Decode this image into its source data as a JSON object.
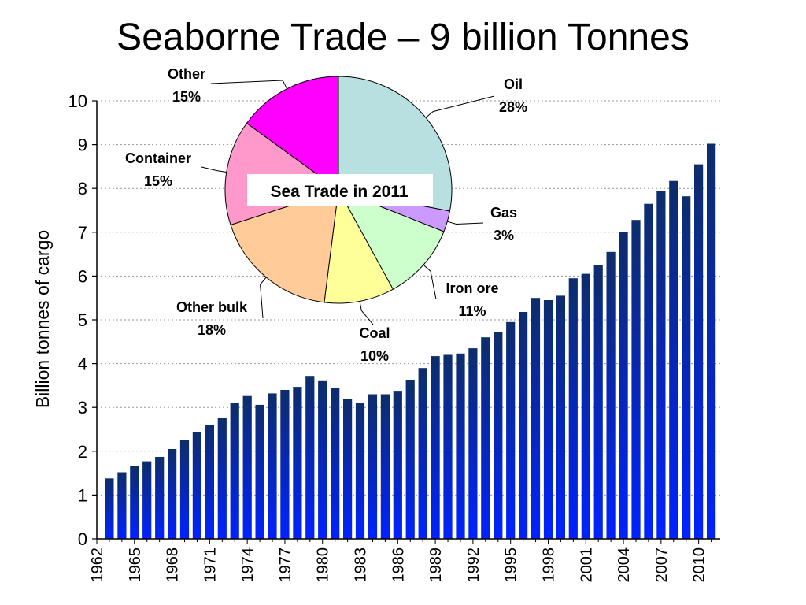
{
  "page": {
    "title": "Seaborne Trade – 9 billion Tonnes"
  },
  "chart_data": [
    {
      "type": "bar",
      "ylabel": "Billion tonnes of cargo",
      "ylim": [
        0,
        10
      ],
      "yticks": [
        "0",
        "1",
        "2",
        "3",
        "4",
        "5",
        "6",
        "7",
        "8",
        "9",
        "10"
      ],
      "grid": true,
      "xtick_labels": [
        "1962",
        "1965",
        "1968",
        "1971",
        "1974",
        "1977",
        "1980",
        "1983",
        "1986",
        "1989",
        "1992",
        "1995",
        "1998",
        "2001",
        "2004",
        "2007",
        "2010"
      ],
      "categories": [
        "1963",
        "1964",
        "1965",
        "1966",
        "1967",
        "1968",
        "1969",
        "1970",
        "1971",
        "1972",
        "1973",
        "1974",
        "1975",
        "1976",
        "1977",
        "1978",
        "1979",
        "1980",
        "1981",
        "1982",
        "1983",
        "1984",
        "1985",
        "1986",
        "1987",
        "1988",
        "1989",
        "1990",
        "1991",
        "1992",
        "1993",
        "1994",
        "1995",
        "1996",
        "1997",
        "1998",
        "1999",
        "2000",
        "2001",
        "2002",
        "2003",
        "2004",
        "2005",
        "2006",
        "2007",
        "2008",
        "2009",
        "2010",
        "2011"
      ],
      "values": [
        1.38,
        1.52,
        1.66,
        1.77,
        1.87,
        2.05,
        2.25,
        2.43,
        2.6,
        2.76,
        3.1,
        3.26,
        3.06,
        3.32,
        3.4,
        3.47,
        3.72,
        3.6,
        3.45,
        3.2,
        3.1,
        3.3,
        3.3,
        3.38,
        3.63,
        3.9,
        4.17,
        4.2,
        4.23,
        4.35,
        4.6,
        4.72,
        4.95,
        5.18,
        5.5,
        5.45,
        5.55,
        5.95,
        6.05,
        6.25,
        6.55,
        7.0,
        7.28,
        7.65,
        7.95,
        8.17,
        7.82,
        8.55,
        9.02
      ],
      "colors": {
        "bar_top": "#0d2d6b",
        "bar_bottom": "#0022ff"
      }
    },
    {
      "type": "pie",
      "title": "Sea Trade in 2011",
      "slices": [
        {
          "label": "Oil",
          "value": 28,
          "display": "28%",
          "color": "#b8e0e0"
        },
        {
          "label": "Gas",
          "value": 3,
          "display": "3%",
          "color": "#cc99ff"
        },
        {
          "label": "Iron ore",
          "value": 11,
          "display": "11%",
          "color": "#ccffcc"
        },
        {
          "label": "Coal",
          "value": 10,
          "display": "10%",
          "color": "#ffff99"
        },
        {
          "label": "Other bulk",
          "value": 18,
          "display": "18%",
          "color": "#ffcc99"
        },
        {
          "label": "Container",
          "value": 15,
          "display": "15%",
          "color": "#ff99cc"
        },
        {
          "label": "Other",
          "value": 15,
          "display": "15%",
          "color": "#ff00ff"
        }
      ]
    }
  ]
}
